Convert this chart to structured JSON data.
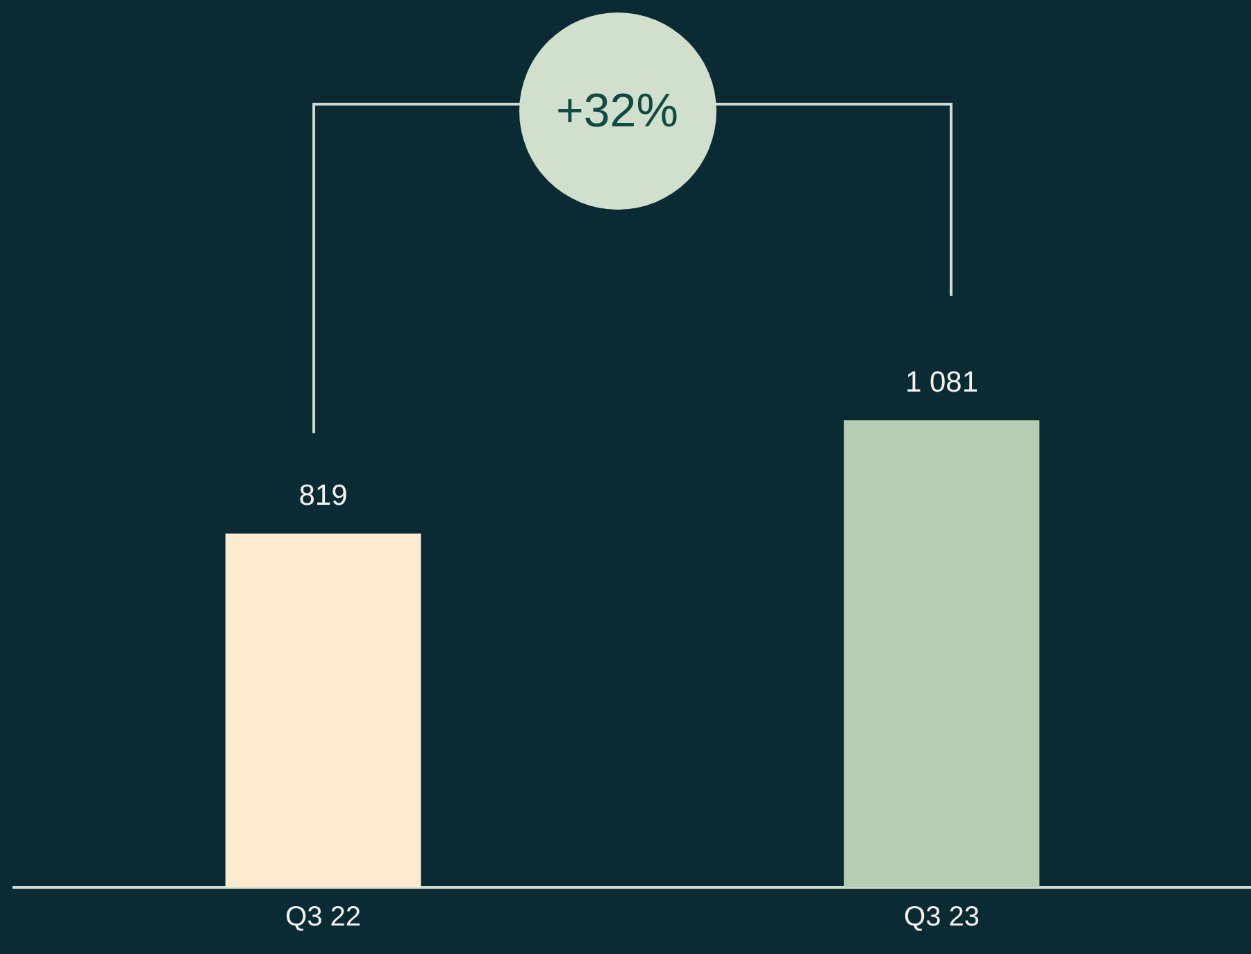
{
  "chart_data": {
    "type": "bar",
    "categories": [
      "Q3 22",
      "Q3 23"
    ],
    "values": [
      819,
      1081
    ],
    "value_labels": [
      "819",
      "1 081"
    ],
    "colors": [
      "#fdebd0",
      "#b5cdb1"
    ],
    "annotations": [
      "+32%"
    ],
    "grid": false,
    "legend": false,
    "tick_labels": "x"
  }
}
